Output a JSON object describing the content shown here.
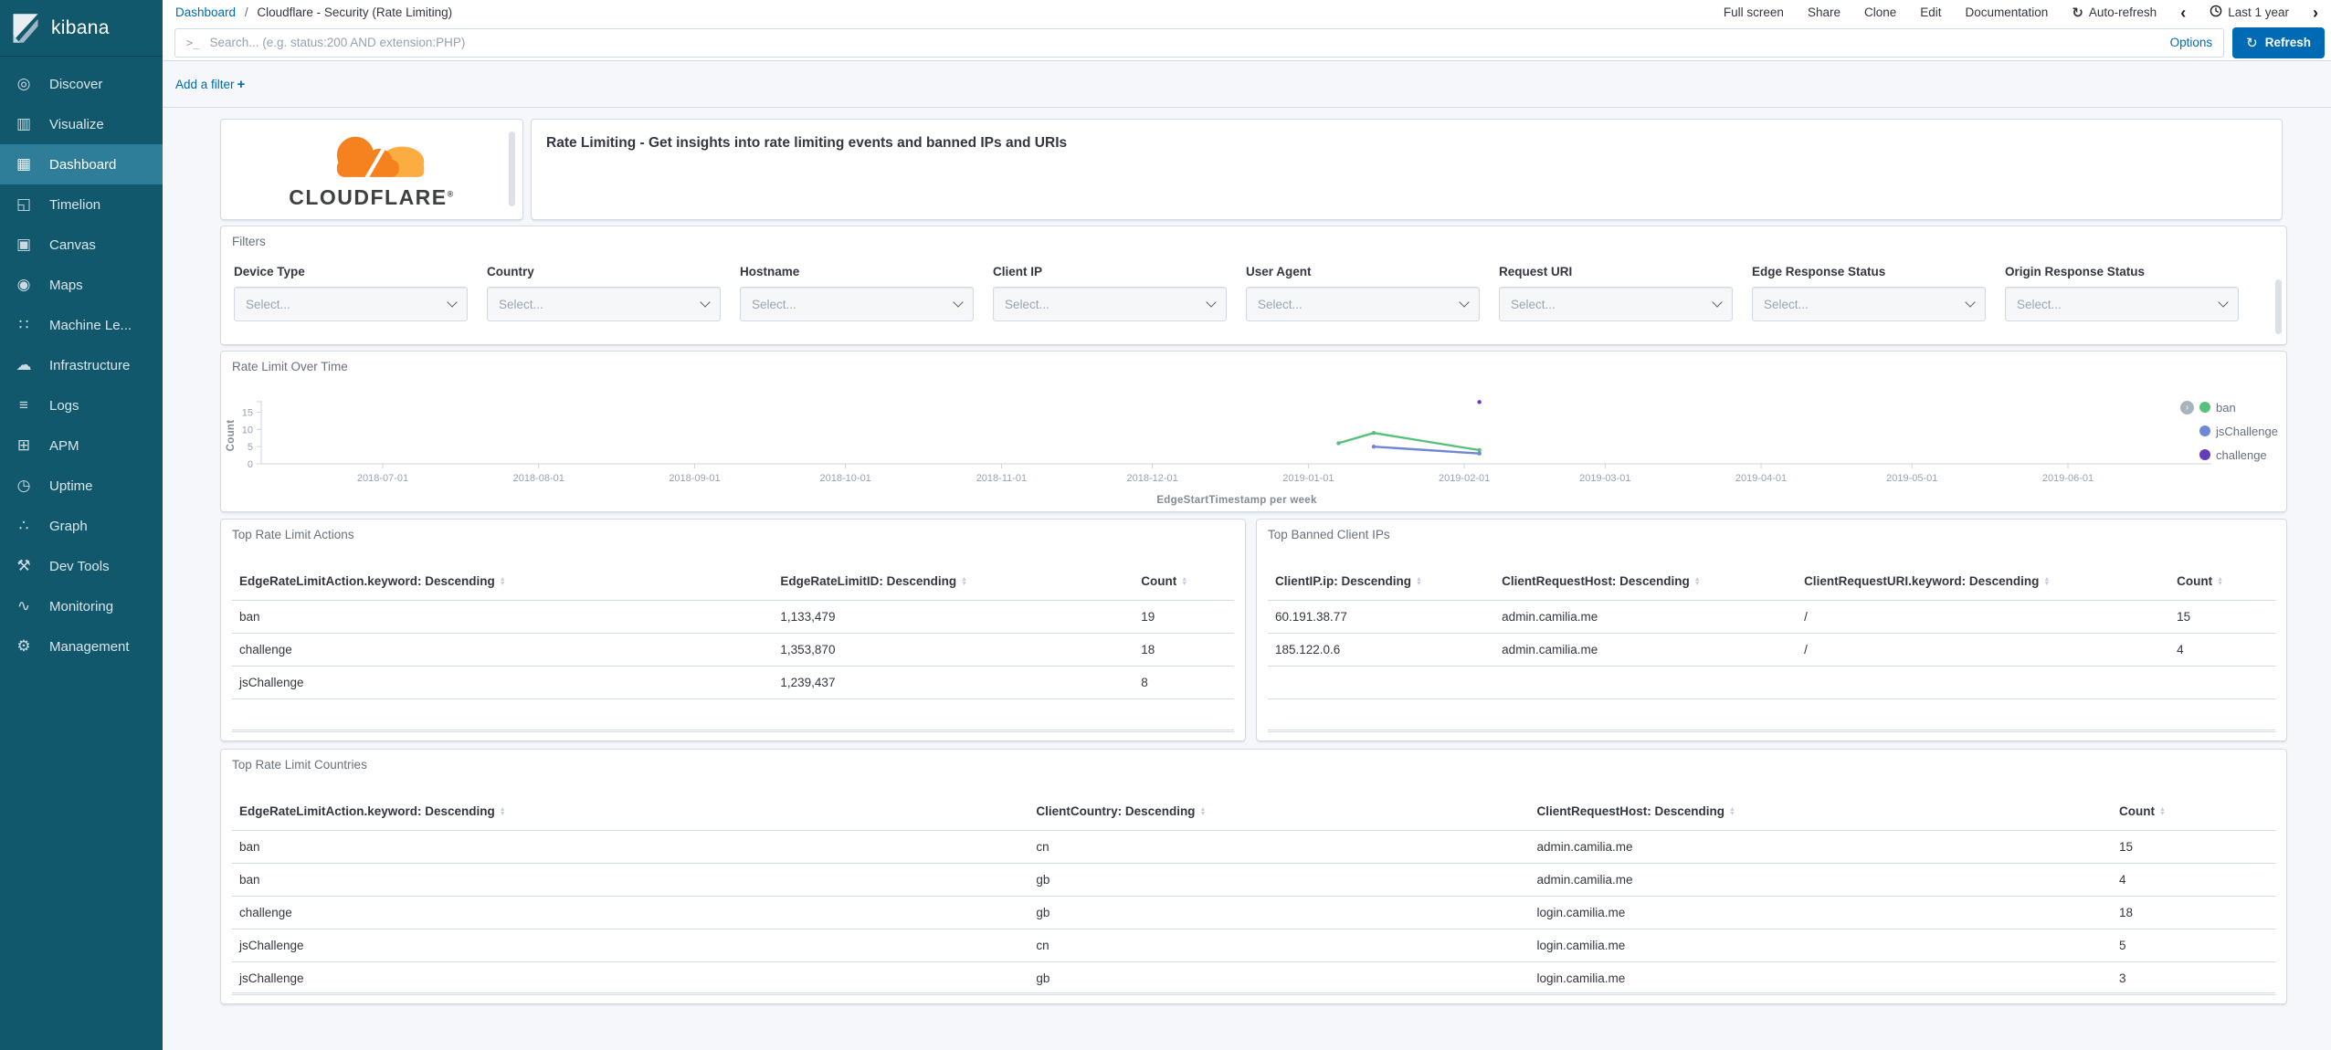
{
  "branding": {
    "app_name": "kibana"
  },
  "sidebar": {
    "items": [
      {
        "label": "Discover",
        "icon": "compass-icon",
        "glyph": "◎",
        "selected": false
      },
      {
        "label": "Visualize",
        "icon": "bar-chart-icon",
        "glyph": "▥",
        "selected": false
      },
      {
        "label": "Dashboard",
        "icon": "dashboard-grid-icon",
        "glyph": "▦",
        "selected": true
      },
      {
        "label": "Timelion",
        "icon": "timelion-icon",
        "glyph": "◱",
        "selected": false
      },
      {
        "label": "Canvas",
        "icon": "canvas-frame-icon",
        "glyph": "▣",
        "selected": false
      },
      {
        "label": "Maps",
        "icon": "map-pin-icon",
        "glyph": "◉",
        "selected": false
      },
      {
        "label": "Machine Le...",
        "icon": "machine-learning-icon",
        "glyph": "∷",
        "selected": false
      },
      {
        "label": "Infrastructure",
        "icon": "cloud-server-icon",
        "glyph": "☁",
        "selected": false
      },
      {
        "label": "Logs",
        "icon": "logs-document-icon",
        "glyph": "≡",
        "selected": false
      },
      {
        "label": "APM",
        "icon": "apm-icon",
        "glyph": "⊞",
        "selected": false
      },
      {
        "label": "Uptime",
        "icon": "uptime-clock-icon",
        "glyph": "◷",
        "selected": false
      },
      {
        "label": "Graph",
        "icon": "graph-nodes-icon",
        "glyph": "∴",
        "selected": false
      },
      {
        "label": "Dev Tools",
        "icon": "wrench-icon",
        "glyph": "⚒",
        "selected": false
      },
      {
        "label": "Monitoring",
        "icon": "heartbeat-icon",
        "glyph": "∿",
        "selected": false
      },
      {
        "label": "Management",
        "icon": "gear-icon",
        "glyph": "⚙",
        "selected": false
      }
    ]
  },
  "topbar": {
    "breadcrumb": {
      "root": "Dashboard",
      "separator": "/",
      "current": "Cloudflare - Security (Rate Limiting)"
    },
    "menu": [
      "Full screen",
      "Share",
      "Clone",
      "Edit",
      "Documentation"
    ],
    "auto_refresh_label": "Auto-refresh",
    "time_range": "Last 1 year"
  },
  "querybar": {
    "prompt_glyph": ">_",
    "placeholder": "Search... (e.g. status:200 AND extension:PHP)",
    "options_label": "Options",
    "refresh_label": "Refresh"
  },
  "filterbar": {
    "add_filter_label": "Add a filter",
    "plus_glyph": "+"
  },
  "icons": {
    "refresh_glyph": "↻",
    "auto_refresh_glyph": "↻",
    "chevron_left": "‹",
    "chevron_right": "›",
    "legend_toggle_glyph": "›"
  },
  "logo_panel": {
    "brand": "CLOUDFLARE",
    "brand_mark": "®"
  },
  "description_panel": {
    "text": "Rate Limiting - Get insights into rate limiting events and banned IPs and URIs"
  },
  "filters_panel": {
    "title": "Filters",
    "placeholder": "Select...",
    "fields": [
      "Device Type",
      "Country",
      "Hostname",
      "Client IP",
      "User Agent",
      "Request URI",
      "Edge Response Status",
      "Origin Response Status"
    ]
  },
  "chart_data": {
    "type": "line",
    "title": "Rate Limit Over Time",
    "xlabel": "EdgeStartTimestamp per week",
    "ylabel": "Count",
    "yticks": [
      0,
      5,
      10,
      15
    ],
    "ylim": [
      0,
      18.5
    ],
    "grid": false,
    "legend_position": "right",
    "xticks": [
      "2018-07-01",
      "2018-08-01",
      "2018-09-01",
      "2018-10-01",
      "2018-11-01",
      "2018-12-01",
      "2019-01-01",
      "2019-02-01",
      "2019-03-01",
      "2019-04-01",
      "2019-05-01",
      "2019-06-01"
    ],
    "series": [
      {
        "name": "ban",
        "color": "#57c17b",
        "points": [
          [
            "2019-01-07",
            6
          ],
          [
            "2019-01-14",
            9
          ],
          [
            "2019-02-04",
            4
          ]
        ]
      },
      {
        "name": "jsChallenge",
        "color": "#6f87d8",
        "points": [
          [
            "2019-01-14",
            5
          ],
          [
            "2019-02-04",
            3
          ]
        ]
      },
      {
        "name": "challenge",
        "color": "#663db8",
        "points": [
          [
            "2019-02-04",
            18
          ]
        ]
      }
    ]
  },
  "tables": {
    "actions": {
      "title": "Top Rate Limit Actions",
      "columns": [
        "EdgeRateLimitAction.keyword: Descending",
        "EdgeRateLimitID: Descending",
        "Count"
      ],
      "rows": [
        [
          "ban",
          "1,133,479",
          "19"
        ],
        [
          "challenge",
          "1,353,870",
          "18"
        ],
        [
          "jsChallenge",
          "1,239,437",
          "8"
        ]
      ]
    },
    "banned_ips": {
      "title": "Top Banned Client IPs",
      "columns": [
        "ClientIP.ip: Descending",
        "ClientRequestHost: Descending",
        "ClientRequestURI.keyword: Descending",
        "Count"
      ],
      "rows": [
        [
          "60.191.38.77",
          "admin.camilia.me",
          "/",
          "15"
        ],
        [
          "185.122.0.6",
          "admin.camilia.me",
          "/",
          "4"
        ]
      ]
    },
    "countries": {
      "title": "Top Rate Limit Countries",
      "columns": [
        "EdgeRateLimitAction.keyword: Descending",
        "ClientCountry: Descending",
        "ClientRequestHost: Descending",
        "Count"
      ],
      "rows": [
        [
          "ban",
          "cn",
          "admin.camilia.me",
          "15"
        ],
        [
          "ban",
          "gb",
          "admin.camilia.me",
          "4"
        ],
        [
          "challenge",
          "gb",
          "login.camilia.me",
          "18"
        ],
        [
          "jsChallenge",
          "cn",
          "login.camilia.me",
          "5"
        ],
        [
          "jsChallenge",
          "gb",
          "login.camilia.me",
          "3"
        ]
      ]
    }
  },
  "colors": {
    "accent_blue": "#006bb4",
    "sidebar_bg": "#12586c",
    "sidebar_selected_bg": "#2e7d99",
    "panel_border": "#d3dae6",
    "page_bg": "#f5f7fa",
    "series_ban": "#57c17b",
    "series_jschallenge": "#6f87d8",
    "series_challenge": "#663db8",
    "cloudflare_orange": "#f6821f",
    "cloudflare_light_orange": "#fbad41"
  }
}
